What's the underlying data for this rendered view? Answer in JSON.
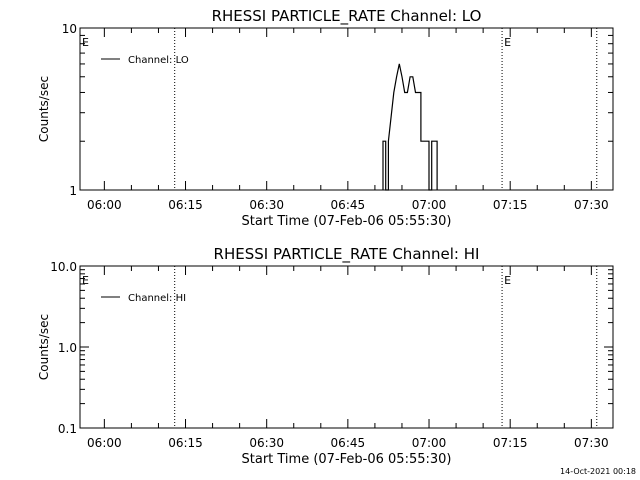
{
  "chart_data": [
    {
      "type": "line",
      "title": "RHESSI PARTICLE_RATE Channel: LO",
      "xlabel": "Start Time (07-Feb-06 05:55:30)",
      "ylabel": "Counts/sec",
      "y_scale": "log",
      "ylim": [
        1,
        10
      ],
      "y_ticks": [
        {
          "v": 1,
          "label": "1"
        },
        {
          "v": 10,
          "label": "10"
        }
      ],
      "xlim": [
        "05:55:30",
        "07:34:00"
      ],
      "x_ticks": [
        "06:00",
        "06:15",
        "06:30",
        "06:45",
        "07:00",
        "07:15",
        "07:30"
      ],
      "markers": [
        {
          "time": "05:55:30",
          "label": "E",
          "dotted": false
        },
        {
          "time": "06:13:00",
          "label": "",
          "dotted": true
        },
        {
          "time": "07:13:30",
          "label": "E",
          "dotted": true
        },
        {
          "time": "07:31:00",
          "label": "",
          "dotted": true
        }
      ],
      "legend": {
        "position": "top-left",
        "entries": [
          "Channel: LO"
        ]
      },
      "grid": false,
      "series": [
        {
          "name": "Channel: LO",
          "points": [
            [
              "06:51:30",
              1
            ],
            [
              "06:51:30",
              2
            ],
            [
              "06:52:00",
              2
            ],
            [
              "06:52:00",
              1
            ],
            [
              "06:52:30",
              1
            ],
            [
              "06:52:30",
              2
            ],
            [
              "06:53:30",
              4
            ],
            [
              "06:54:00",
              5
            ],
            [
              "06:54:30",
              6
            ],
            [
              "06:55:00",
              5
            ],
            [
              "06:55:30",
              4
            ],
            [
              "06:56:00",
              4
            ],
            [
              "06:56:30",
              5
            ],
            [
              "06:57:00",
              5
            ],
            [
              "06:57:30",
              4
            ],
            [
              "06:58:00",
              4
            ],
            [
              "06:58:30",
              4
            ],
            [
              "06:58:30",
              2
            ],
            [
              "07:00:00",
              2
            ],
            [
              "07:00:00",
              1
            ],
            [
              "07:00:30",
              1
            ],
            [
              "07:00:30",
              2
            ],
            [
              "07:01:30",
              2
            ],
            [
              "07:01:30",
              1
            ]
          ]
        }
      ]
    },
    {
      "type": "line",
      "title": "RHESSI PARTICLE_RATE Channel: HI",
      "xlabel": "Start Time (07-Feb-06 05:55:30)",
      "ylabel": "Counts/sec",
      "y_scale": "log",
      "ylim": [
        0.1,
        10
      ],
      "y_ticks": [
        {
          "v": 0.1,
          "label": "0.1"
        },
        {
          "v": 1,
          "label": "1.0"
        },
        {
          "v": 10,
          "label": "10.0"
        }
      ],
      "xlim": [
        "05:55:30",
        "07:34:00"
      ],
      "x_ticks": [
        "06:00",
        "06:15",
        "06:30",
        "06:45",
        "07:00",
        "07:15",
        "07:30"
      ],
      "markers": [
        {
          "time": "05:55:30",
          "label": "E",
          "dotted": false
        },
        {
          "time": "06:13:00",
          "label": "",
          "dotted": true
        },
        {
          "time": "07:13:30",
          "label": "E",
          "dotted": true
        },
        {
          "time": "07:31:00",
          "label": "",
          "dotted": true
        }
      ],
      "legend": {
        "position": "top-left",
        "entries": [
          "Channel: HI"
        ]
      },
      "grid": false,
      "series": [
        {
          "name": "Channel: HI",
          "points": []
        }
      ]
    }
  ],
  "footer": {
    "timestamp": "14-Oct-2021 00:18"
  }
}
